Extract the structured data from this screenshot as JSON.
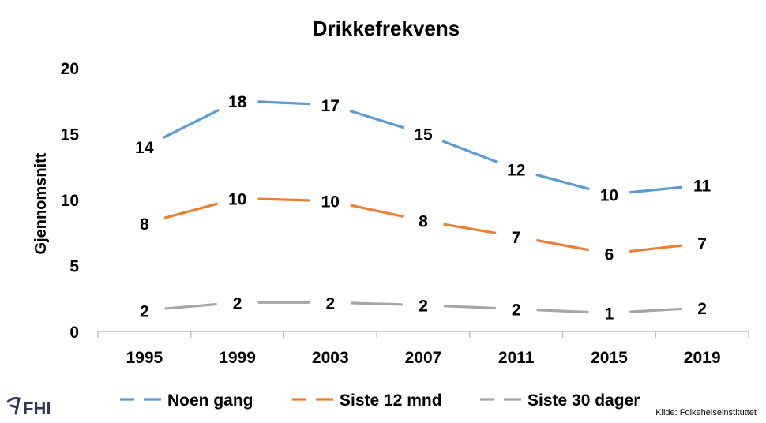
{
  "chart_data": {
    "type": "line",
    "title": "Drikkefrekvens",
    "ylabel": "Gjennomsnitt",
    "xlabel": "",
    "ylim": [
      0,
      20
    ],
    "yticks": [
      0,
      5,
      10,
      15,
      20
    ],
    "categories": [
      "1995",
      "1999",
      "2003",
      "2007",
      "2011",
      "2015",
      "2019"
    ],
    "series": [
      {
        "name": "Noen gang",
        "color": "#5b9bd5",
        "values": [
          14,
          17.5,
          17.2,
          15,
          12.3,
          10.4,
          11.1
        ],
        "labels": [
          "14",
          "18",
          "17",
          "15",
          "12",
          "10",
          "11"
        ]
      },
      {
        "name": "Siste 12 mnd",
        "color": "#ed7d31",
        "values": [
          8.2,
          10.1,
          9.9,
          8.4,
          7.2,
          5.9,
          6.7
        ],
        "labels": [
          "8",
          "10",
          "10",
          "8",
          "7",
          "6",
          "7"
        ]
      },
      {
        "name": "Siste 30 dager",
        "color": "#a5a5a5",
        "values": [
          1.6,
          2.2,
          2.2,
          2.0,
          1.7,
          1.4,
          1.8
        ],
        "labels": [
          "2",
          "2",
          "2",
          "2",
          "2",
          "1",
          "2"
        ]
      }
    ],
    "grid": false,
    "legend_position": "bottom"
  },
  "logo": {
    "text": "FHI",
    "color": "#2b3a55"
  },
  "source": "Kilde: Folkehelseinstituttet"
}
